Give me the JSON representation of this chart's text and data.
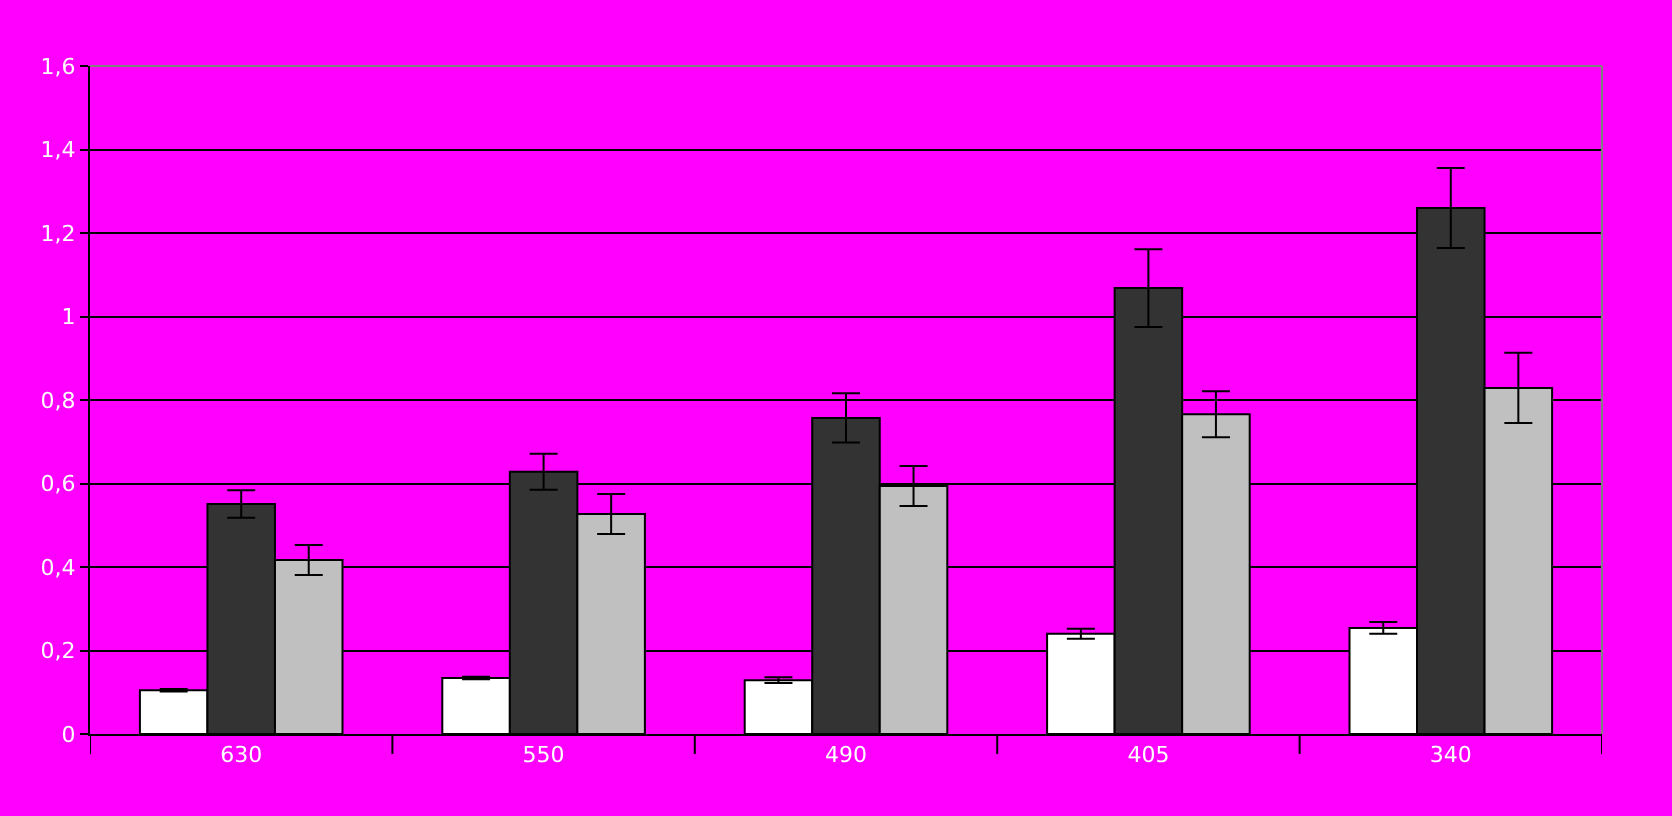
{
  "chart_data": {
    "type": "bar",
    "categories": [
      "630",
      "550",
      "490",
      "405",
      "340"
    ],
    "series": [
      {
        "color": "#ffffff",
        "values": [
          0.105,
          0.134,
          0.129,
          0.24,
          0.254
        ],
        "errors": [
          0.003,
          0.003,
          0.007,
          0.012,
          0.014
        ]
      },
      {
        "color": "#333333",
        "values": [
          0.551,
          0.628,
          0.757,
          1.068,
          1.26
        ],
        "errors": [
          0.033,
          0.043,
          0.059,
          0.093,
          0.096
        ]
      },
      {
        "color": "#c0c0c0",
        "values": [
          0.417,
          0.527,
          0.594,
          0.766,
          0.829
        ],
        "errors": [
          0.036,
          0.048,
          0.048,
          0.055,
          0.084
        ]
      }
    ],
    "ylim": [
      0,
      1.6
    ],
    "yticks": [
      0,
      {
        "value": 0.2,
        "label": "0,2"
      },
      {
        "value": 0.4,
        "label": "0,4"
      },
      {
        "value": 0.6,
        "label": "0,6"
      },
      {
        "value": 0.8,
        "label": "0,8"
      },
      1,
      {
        "value": 1.2,
        "label": "1,2"
      },
      {
        "value": 1.4,
        "label": "1,4"
      },
      {
        "value": 1.6,
        "label": "1,6"
      }
    ],
    "grid": "y"
  }
}
